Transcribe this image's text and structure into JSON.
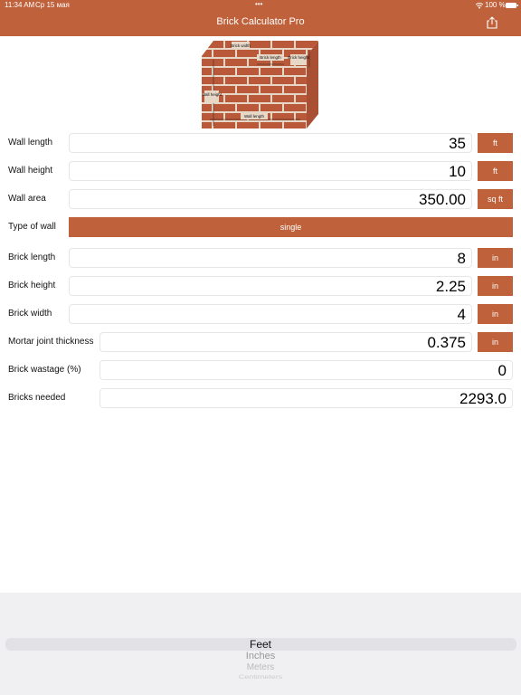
{
  "status_bar": {
    "time": "11:34 AM",
    "date": "Ср 15 мая",
    "battery": "100 %"
  },
  "nav_bar": {
    "title": "Brick Calculator Pro"
  },
  "diagram": {
    "labels": [
      "Brick width",
      "Brick length",
      "Brick height",
      "Wall height",
      "Wall length"
    ]
  },
  "form": {
    "rows": [
      {
        "label": "Wall length",
        "value": "35",
        "unit": "ft"
      },
      {
        "label": "Wall height",
        "value": "10",
        "unit": "ft"
      },
      {
        "label": "Wall area",
        "value": "350.00",
        "unit": "sq ft"
      },
      {
        "label": "Type of wall",
        "value": "single"
      },
      {
        "label": "Brick length",
        "value": "8",
        "unit": "in"
      },
      {
        "label": "Brick height",
        "value": "2.25",
        "unit": "in"
      },
      {
        "label": "Brick width",
        "value": "4",
        "unit": "in"
      },
      {
        "label": "Mortar joint thickness",
        "value": "0.375",
        "unit": "in"
      },
      {
        "label": "Brick wastage (%)",
        "value": "0"
      },
      {
        "label": "Bricks needed",
        "value": "2293.0"
      }
    ]
  },
  "picker": {
    "options": [
      "Feet",
      "Inches",
      "Meters",
      "Centimeters"
    ]
  }
}
